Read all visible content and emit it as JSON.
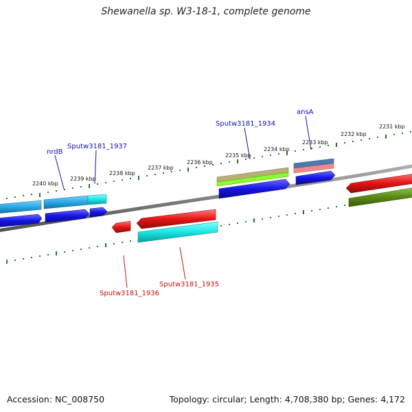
{
  "map": {
    "title": "Shewanella sp. W3-18-1, complete genome",
    "accession_text": "Accession: NC_008750",
    "summary_text": "Topology: circular; Length: 4,708,380 bp; Genes: 4,172"
  },
  "ticks": [
    "2240 kbp",
    "2239 kbp",
    "2238 kbp",
    "2237 kbp",
    "2236 kbp",
    "2235 kbp",
    "2234 kbp",
    "2233 kbp",
    "2232 kbp",
    "2231 kbp"
  ],
  "gene_labels": {
    "nrdB": "nrdB",
    "sputw1937": "Sputw3181_1937",
    "sputw1934": "Sputw3181_1934",
    "ansA": "ansA",
    "sputw1936": "Sputw3181_1936",
    "sputw1935": "Sputw3181_1935"
  },
  "colors": {
    "backbone": "#808080",
    "ticks": "#1e7a1e",
    "blue": "#1414e6",
    "red": "#e61414",
    "cyan": "#19e6e6",
    "sky": "#2aa8e6",
    "olive": "#5a8a14",
    "khaki": "#b8b078",
    "lime": "#8cff2a",
    "steel": "#4a7ab0",
    "pink": "#f08a8a"
  }
}
